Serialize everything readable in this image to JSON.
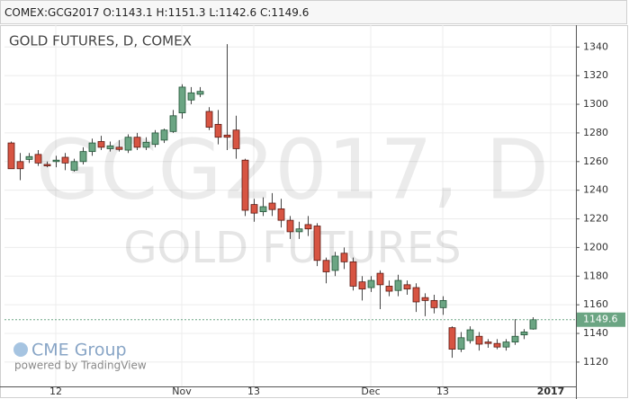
{
  "chart_data": {
    "type": "candlestick",
    "symbol": "COMEX:GCG2017",
    "ohlc_labels": [
      "O:",
      "H:",
      "L:",
      "C:"
    ],
    "title": "GOLD FUTURES, D, COMEX",
    "watermark": "GCG2017, D",
    "watermark_subtitle": "GOLD FUTURES",
    "logo": "CME Group",
    "credit": "powered by TradingView",
    "categories": [
      null,
      null,
      null,
      null,
      null,
      "12",
      null,
      null,
      null,
      null,
      null,
      null,
      null,
      null,
      null,
      null,
      null,
      null,
      null,
      "Nov",
      null,
      null,
      null,
      null,
      null,
      null,
      null,
      "13",
      null,
      null,
      null,
      null,
      null,
      null,
      null,
      null,
      null,
      null,
      null,
      null,
      "Dec",
      null,
      null,
      null,
      null,
      null,
      null,
      null,
      "13",
      null,
      null,
      null,
      null,
      null,
      null,
      null,
      null,
      null,
      null,
      null,
      "2017"
    ],
    "open": [
      1273,
      1260,
      1261.5,
      1265,
      1258,
      1260,
      1263,
      1254,
      1260,
      1267,
      1274,
      1269,
      1270,
      1268,
      1277,
      1270,
      1272,
      1275,
      1281,
      1294,
      1303,
      1307,
      1295,
      1286,
      1278.5,
      1282,
      1261,
      1230,
      1225,
      1231,
      1227,
      1219,
      1211,
      1216,
      1215,
      1191,
      1184,
      1196,
      1190,
      1176,
      1172,
      1182,
      1173,
      1170,
      1174,
      1172,
      1165,
      1163,
      1158,
      1144,
      1129,
      1135,
      1138,
      1134,
      1133,
      1130.5,
      1134,
      1139,
      1143.1,
      null,
      null
    ],
    "high": [
      1274,
      1266,
      1266,
      1268,
      1260,
      1264,
      1266,
      1262,
      1270,
      1276,
      1278,
      1274,
      1275,
      1279,
      1280,
      1277,
      1282,
      1283,
      1296,
      1314,
      1312,
      1312,
      1298,
      1296,
      1342,
      1292,
      1262,
      1234,
      1235,
      1238,
      1234,
      1222,
      1218,
      1222,
      1217,
      1193,
      1197,
      1200,
      1193,
      1180,
      1180,
      1184,
      1177,
      1181,
      1177,
      1175,
      1168,
      1167,
      1166,
      1145,
      1141,
      1145,
      1141,
      1136,
      1136,
      1136,
      1150,
      1143,
      1151.3,
      null,
      null
    ],
    "low": [
      1255,
      1247,
      1259,
      1257,
      1256,
      1256,
      1254,
      1253,
      1258,
      1264,
      1268,
      1267,
      1267,
      1266,
      1268,
      1268,
      1270,
      1273,
      1280,
      1290,
      1300,
      1305,
      1282,
      1272,
      1268,
      1262,
      1222,
      1218,
      1222,
      1222,
      1214,
      1206,
      1206,
      1208,
      1187,
      1175,
      1180,
      1185,
      1170,
      1163,
      1169,
      1157,
      1166,
      1166,
      1167,
      1155,
      1152,
      1154,
      1153,
      1123,
      1127,
      1133,
      1128,
      1130,
      1129,
      1128,
      1132,
      1136,
      1142.6,
      null,
      null
    ],
    "close": [
      1255,
      1255,
      1263.5,
      1259,
      1257,
      1261,
      1259,
      1260,
      1267,
      1273,
      1270,
      1271,
      1268.5,
      1277,
      1270,
      1273.5,
      1280,
      1282,
      1292,
      1312,
      1308,
      1309,
      1284,
      1277,
      1277,
      1269,
      1226,
      1224,
      1228.5,
      1226.5,
      1219,
      1211,
      1213,
      1213,
      1191,
      1183,
      1194,
      1190,
      1173,
      1171,
      1177,
      1174,
      1169.5,
      1177,
      1171,
      1162,
      1163,
      1158,
      1163,
      1129,
      1137,
      1142.5,
      1132.5,
      1133,
      1130.5,
      1134,
      1138,
      1141,
      1149.6,
      null,
      null
    ],
    "ylim": [
      1103,
      1354
    ],
    "yticks": [
      1120,
      1140,
      1160,
      1180,
      1200,
      1220,
      1240,
      1260,
      1280,
      1300,
      1320,
      1340
    ],
    "up_color": "#6ba583",
    "down_color": "#d75442",
    "grid": true
  }
}
